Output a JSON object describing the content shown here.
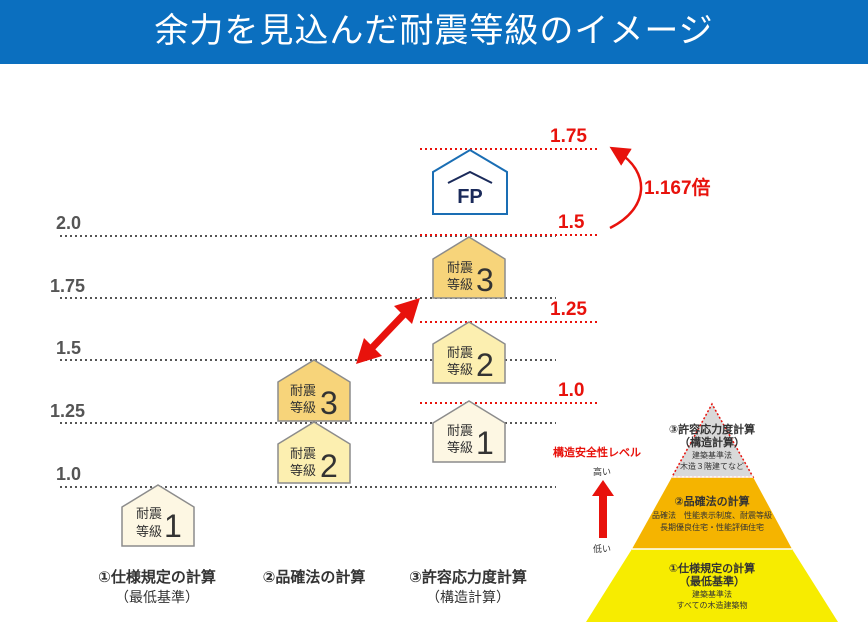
{
  "header": {
    "title": "余力を見込んだ耐震等級のイメージ"
  },
  "scale_labels": [
    "2.0",
    "1.75",
    "1.5",
    "1.25",
    "1.0"
  ],
  "red_labels": [
    "1.75",
    "1.5",
    "1.25",
    "1.0"
  ],
  "ratio_label": "1.167倍",
  "house_label_line1": "耐震",
  "house_label_line2": "等級",
  "houses": {
    "spec_grade1": "1",
    "hinkaku_grade2": "2",
    "hinkaku_grade3": "3",
    "kyoyo_grade1": "1",
    "kyoyo_grade2": "2",
    "kyoyo_grade3": "3"
  },
  "fp_logo": "FP",
  "columns": [
    {
      "main": "①仕様規定の計算",
      "sub": "（最低基準）"
    },
    {
      "main": "②品確法の計算",
      "sub": ""
    },
    {
      "main": "③許容応力度計算",
      "sub": "（構造計算）"
    }
  ],
  "pyramid": {
    "level_label": "構造安全性レベル",
    "high": "高い",
    "low": "低い",
    "top": {
      "title1": "③許容応力度計算",
      "title2": "（構造計算）",
      "line1": "建築基準法",
      "line2": "木造３階建てなど"
    },
    "middle": {
      "title": "②品確法の計算",
      "line1": "品確法　性能表示制度、耐震等級",
      "line2": "長期優良住宅・性能評価住宅"
    },
    "bottom": {
      "title1": "①仕様規定の計算",
      "title2": "（最低基準）",
      "line1": "建築基準法",
      "line2": "すべての木造建築物"
    }
  },
  "colors": {
    "header": "#0b6fbf",
    "accent_red": "#e8120c",
    "house_grade1": "#fdf7e3",
    "house_grade2": "#fcefb0",
    "house_grade3": "#f7d47a",
    "pyramid_top": "#d9d9d9",
    "pyramid_middle": "#f5b400",
    "pyramid_bottom": "#f7ec00"
  }
}
